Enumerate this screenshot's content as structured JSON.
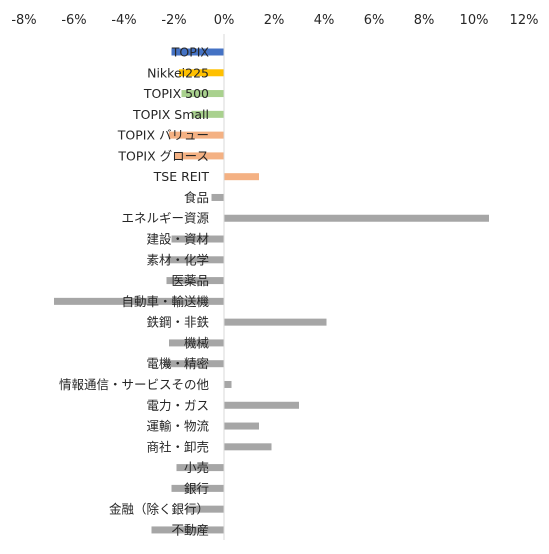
{
  "chart_data": {
    "type": "bar",
    "orientation": "horizontal",
    "xlim": [
      -8,
      12
    ],
    "x_ticks": [
      -8,
      -6,
      -4,
      -2,
      0,
      2,
      4,
      6,
      8,
      10,
      12
    ],
    "x_tick_labels": [
      "-8%",
      "-6%",
      "-4%",
      "-2%",
      "0%",
      "2%",
      "4%",
      "6%",
      "8%",
      "10%",
      "12%"
    ],
    "x_axis_position": "top",
    "grid": false,
    "legend": "none",
    "unit": "%",
    "categories": [
      "TOPIX",
      "Nikkei225",
      "TOPIX 500",
      "TOPIX Small",
      "TOPIX バリュー",
      "TOPIX グロース",
      "TSE REIT",
      "食品",
      "エネルギー資源",
      "建設・資材",
      "素材・化学",
      "医薬品",
      "自動車・輸送機",
      "鉄鋼・非鉄",
      "機械",
      "電機・精密",
      "情報通信・サービスその他",
      "電力・ガス",
      "運輸・物流",
      "商社・卸売",
      "小売",
      "銀行",
      "金融（除く銀行）",
      "不動産"
    ],
    "values": [
      -2.1,
      -1.8,
      -1.7,
      -1.3,
      -2.2,
      -2.0,
      1.4,
      -0.5,
      10.6,
      -2.1,
      -2.3,
      -2.3,
      -6.8,
      4.1,
      -2.2,
      -2.4,
      0.3,
      3.0,
      1.4,
      1.9,
      -1.9,
      -2.1,
      -1.5,
      -2.9
    ],
    "colors": [
      "#4472c4",
      "#ffc000",
      "#a9d18e",
      "#a9d18e",
      "#f4b183",
      "#f4b183",
      "#f4b183",
      "#a6a6a6",
      "#a6a6a6",
      "#a6a6a6",
      "#a6a6a6",
      "#a6a6a6",
      "#a6a6a6",
      "#a6a6a6",
      "#a6a6a6",
      "#a6a6a6",
      "#a6a6a6",
      "#a6a6a6",
      "#a6a6a6",
      "#a6a6a6",
      "#a6a6a6",
      "#a6a6a6",
      "#a6a6a6",
      "#a6a6a6"
    ],
    "title": "",
    "xlabel": "",
    "ylabel": ""
  }
}
